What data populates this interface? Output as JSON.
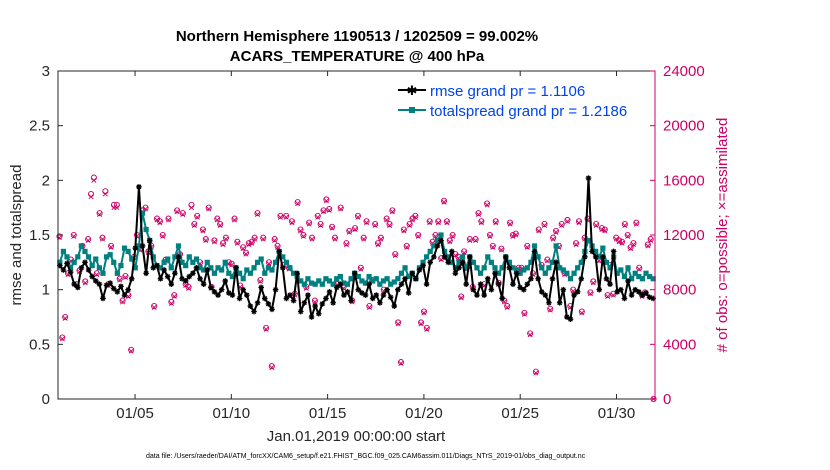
{
  "chart_data": {
    "type": "line",
    "title_line1": "Northern Hemisphere 1190513 / 1202509 = 99.002%",
    "title_line2": "ACARS_TEMPERATURE @ 400 hPa",
    "xlabel": "Jan.01,2019 00:00:00 start",
    "ylabel": "rmse and totalspread",
    "y2label": "# of obs: o=possible; ×=assimilated",
    "xlim": [
      1.0,
      32.0
    ],
    "ylim": [
      0,
      3
    ],
    "y2lim": [
      0,
      24000
    ],
    "x_tick_values": [
      5,
      10,
      15,
      20,
      25,
      30
    ],
    "x_tick_labels": [
      "01/05",
      "01/10",
      "01/15",
      "01/20",
      "01/25",
      "01/30"
    ],
    "y_tick_values": [
      0,
      0.5,
      1,
      1.5,
      2,
      2.5,
      3
    ],
    "y_tick_labels": [
      "0",
      "0.5",
      "1",
      "1.5",
      "2",
      "2.5",
      "3"
    ],
    "y2_tick_values": [
      0,
      4000,
      8000,
      12000,
      16000,
      20000,
      24000
    ],
    "y2_tick_labels": [
      "0",
      "4000",
      "8000",
      "12000",
      "16000",
      "20000",
      "24000"
    ],
    "footnote": "data file: /Users/raeder/DAI/ATM_forcXX/CAM6_setup/f.e21.FHIST_BGC.f09_025.CAM6assim.011/Diags_NTrS_2019-01/obs_diag_output.nc",
    "colors": {
      "rmse": "#000000",
      "spread": "#008080",
      "obs": "#cc0066",
      "legend_text": "#0044ee"
    },
    "series": [
      {
        "name": "rmse grand pr = 1.1106",
        "key": "rmse",
        "values": [
          1.22,
          1.18,
          1.24,
          1.16,
          1.05,
          1.02,
          1.2,
          1.25,
          1.18,
          1.12,
          1.08,
          1.05,
          0.92,
          1.04,
          1.06,
          1.01,
          0.98,
          1.03,
          0.95,
          1.0,
          1.1,
          1.38,
          1.94,
          1.4,
          1.15,
          1.45,
          1.2,
          1.22,
          1.1,
          1.18,
          1.12,
          1.05,
          1.15,
          1.3,
          1.1,
          1.08,
          1.12,
          1.15,
          1.2,
          1.1,
          1.05,
          1.18,
          1.02,
          0.98,
          0.95,
          1.0,
          1.08,
          0.97,
          0.95,
          1.2,
          0.92,
          1.0,
          0.95,
          0.85,
          0.8,
          0.88,
          1.02,
          0.92,
          0.87,
          0.82,
          1.0,
          1.35,
          1.2,
          0.92,
          0.95,
          0.9,
          1.15,
          0.8,
          0.88,
          0.95,
          0.75,
          0.85,
          0.78,
          0.87,
          0.92,
          0.98,
          0.88,
          1.02,
          1.05,
          0.95,
          0.98,
          0.9,
          1.15,
          1.0,
          0.97,
          0.95,
          1.05,
          0.92,
          0.95,
          0.88,
          0.95,
          1.0,
          0.93,
          0.85,
          1.0,
          1.05,
          1.1,
          0.97,
          1.15,
          1.1,
          1.18,
          1.22,
          1.05,
          1.25,
          1.3,
          1.4,
          1.45,
          1.3,
          1.25,
          1.35,
          1.15,
          1.2,
          1.25,
          1.05,
          1.3,
          1.0,
          0.95,
          1.05,
          0.95,
          1.1,
          1.0,
          1.15,
          1.05,
          0.92,
          1.3,
          1.2,
          1.05,
          1.15,
          1.02,
          1.0,
          1.05,
          1.1,
          1.35,
          1.1,
          0.98,
          0.95,
          0.88,
          1.1,
          1.25,
          0.88,
          1.0,
          0.75,
          0.73,
          0.95,
          0.98,
          1.1,
          1.3,
          2.02,
          1.35,
          1.3,
          1.0,
          1.3,
          1.1,
          1.05,
          1.35,
          0.98,
          1.0,
          0.92,
          1.08,
          0.95,
          1.0,
          0.98,
          0.95,
          0.97,
          0.93,
          0.92
        ]
      },
      {
        "name": "totalspread grand pr = 1.2186",
        "key": "spread",
        "values": [
          1.25,
          1.35,
          1.3,
          1.2,
          1.25,
          1.3,
          1.4,
          1.35,
          1.3,
          1.22,
          1.28,
          1.2,
          1.15,
          1.3,
          1.32,
          1.25,
          1.15,
          1.22,
          1.38,
          1.35,
          1.28,
          1.2,
          1.4,
          1.7,
          1.55,
          1.45,
          1.3,
          1.22,
          1.2,
          1.25,
          1.28,
          1.2,
          1.3,
          1.4,
          1.25,
          1.22,
          1.3,
          1.25,
          1.28,
          1.2,
          1.18,
          1.25,
          1.2,
          1.15,
          1.2,
          1.18,
          1.25,
          1.15,
          1.12,
          1.2,
          1.15,
          1.1,
          1.18,
          1.15,
          1.2,
          1.25,
          1.28,
          1.15,
          1.2,
          1.18,
          1.25,
          1.35,
          1.3,
          1.25,
          1.2,
          1.15,
          1.12,
          1.08,
          1.05,
          1.1,
          1.06,
          1.05,
          1.08,
          1.05,
          1.1,
          1.08,
          1.05,
          1.1,
          1.12,
          1.06,
          1.05,
          1.1,
          1.15,
          1.12,
          1.08,
          1.06,
          1.12,
          1.08,
          1.1,
          1.05,
          1.08,
          1.1,
          1.05,
          1.07,
          1.1,
          1.15,
          1.2,
          1.12,
          1.15,
          1.1,
          1.2,
          1.25,
          1.3,
          1.35,
          1.4,
          1.45,
          1.5,
          1.35,
          1.3,
          1.25,
          1.2,
          1.25,
          1.3,
          1.2,
          1.3,
          1.25,
          1.2,
          1.15,
          1.2,
          1.3,
          1.25,
          1.2,
          1.15,
          1.2,
          1.3,
          1.25,
          1.2,
          1.18,
          1.15,
          1.18,
          1.2,
          1.25,
          1.4,
          1.3,
          1.2,
          1.15,
          1.2,
          1.25,
          1.4,
          1.2,
          1.18,
          1.15,
          1.1,
          1.15,
          1.2,
          1.25,
          1.35,
          1.45,
          1.4,
          1.35,
          1.3,
          1.38,
          1.25,
          1.2,
          1.3,
          1.15,
          1.18,
          1.12,
          1.2,
          1.1,
          1.15,
          1.12,
          1.1,
          1.15,
          1.12,
          1.1
        ]
      },
      {
        "name": "obs possible",
        "key": "obs_possible",
        "marker": "o",
        "values": [
          11900,
          4500,
          6000,
          9200,
          10200,
          12000,
          8400,
          9400,
          11200,
          8600,
          11700,
          15000,
          16200,
          9200,
          13600,
          11800,
          15200,
          8400,
          11200,
          14200,
          14200,
          8800,
          7200,
          9000,
          7600,
          3600,
          10400,
          12000,
          11000,
          13800,
          14000,
          10800,
          11200,
          6800,
          13200,
          13000,
          12000,
          10200,
          13200,
          7100,
          7600,
          13800,
          10600,
          13600,
          8400,
          8200,
          14200,
          12800,
          13400,
          10000,
          12400,
          11700,
          14000,
          8200,
          11600,
          13200,
          12800,
          11400,
          11800,
          10000,
          9900,
          13200,
          11500,
          8300,
          11100,
          10700,
          11400,
          11500,
          11800,
          13600,
          8700,
          11800,
          5200,
          10000,
          2400,
          11700,
          11200,
          13400,
          9800,
          13400,
          9600,
          13000,
          7700,
          14400,
          12400,
          12000,
          8200,
          12900,
          11800,
          7200,
          13400,
          12800,
          13800,
          14600,
          13900,
          12600,
          11800,
          8400,
          14000,
          8200,
          11400,
          12300,
          7200,
          12500,
          13400,
          9600,
          11800,
          13000,
          6800,
          8700,
          12800,
          11400,
          11800,
          8000,
          13200,
          12800,
          13800,
          10600,
          5600,
          2700,
          12400,
          11200,
          12800,
          13200,
          13400,
          12000,
          5600,
          6400,
          5200,
          13000,
          11500,
          12000,
          13000,
          10300,
          14500,
          13000,
          11600,
          12000,
          10600,
          10400,
          7500,
          10800,
          9600,
          11700,
          8200,
          11700,
          13600,
          13000,
          8400,
          14300,
          12000,
          11200,
          13000,
          8500,
          11000,
          7200,
          6800,
          12900,
          12000,
          12100,
          9600,
          9600,
          6300,
          11200,
          4800,
          9200,
          2000,
          12400,
          9800,
          12800,
          10200,
          6600,
          11800,
          12300,
          11200,
          12800,
          9200,
          13100,
          6800,
          8000,
          11400,
          13000,
          6400,
          11800,
          13200,
          7800,
          8600,
          12800,
          10200,
          12500,
          12400,
          7600,
          9800,
          7700,
          11800,
          11600,
          11500,
          12800,
          12000,
          11100,
          11400,
          12900,
          9600,
          7600,
          7800,
          11300,
          11700,
          0
        ]
      },
      {
        "name": "obs assimilated",
        "key": "obs_assimilated",
        "marker": "x",
        "values": [
          11800,
          4400,
          5900,
          9100,
          10100,
          11900,
          8300,
          9300,
          11100,
          8500,
          11600,
          14800,
          16000,
          9100,
          13500,
          11700,
          15000,
          8300,
          11100,
          14000,
          14000,
          8700,
          7100,
          8900,
          7500,
          3500,
          10300,
          11900,
          10900,
          13700,
          13900,
          10700,
          11100,
          6700,
          13100,
          12900,
          11900,
          10100,
          13100,
          7000,
          7500,
          13700,
          10500,
          13500,
          8300,
          8100,
          14000,
          12700,
          13300,
          9900,
          12300,
          11600,
          13900,
          8100,
          11500,
          13100,
          12700,
          11300,
          11700,
          9900,
          9800,
          13100,
          11400,
          8200,
          11000,
          10600,
          11300,
          11400,
          11700,
          13500,
          8600,
          11700,
          5100,
          9900,
          2300,
          11600,
          11100,
          13300,
          9700,
          13300,
          9500,
          12900,
          7600,
          14300,
          12300,
          11900,
          8100,
          12800,
          11700,
          7100,
          13300,
          12700,
          13700,
          14500,
          13800,
          12500,
          11700,
          8300,
          13900,
          8100,
          11300,
          12200,
          7100,
          12400,
          13300,
          9500,
          11700,
          12900,
          6700,
          8600,
          12700,
          11300,
          11700,
          7900,
          13100,
          12700,
          13700,
          10500,
          5500,
          2600,
          12300,
          11100,
          12700,
          13100,
          13300,
          11900,
          5500,
          6300,
          5100,
          12900,
          11400,
          11900,
          12900,
          10200,
          14400,
          12900,
          11500,
          11900,
          10500,
          10300,
          7400,
          10700,
          9500,
          11600,
          8100,
          11600,
          13500,
          12900,
          8300,
          14200,
          11900,
          11100,
          12900,
          8400,
          10900,
          7100,
          6700,
          12800,
          11900,
          12000,
          9500,
          9500,
          6200,
          11100,
          4700,
          9100,
          1900,
          12300,
          9700,
          12700,
          10100,
          6500,
          11700,
          12200,
          11100,
          12700,
          9100,
          13000,
          6700,
          7900,
          11300,
          12900,
          6300,
          11700,
          13100,
          7700,
          8500,
          12700,
          10100,
          12400,
          12300,
          7500,
          9700,
          7600,
          11700,
          11500,
          11400,
          12700,
          11900,
          11000,
          11300,
          12800,
          9500,
          7500,
          7700,
          11200,
          11600,
          0
        ]
      }
    ]
  }
}
